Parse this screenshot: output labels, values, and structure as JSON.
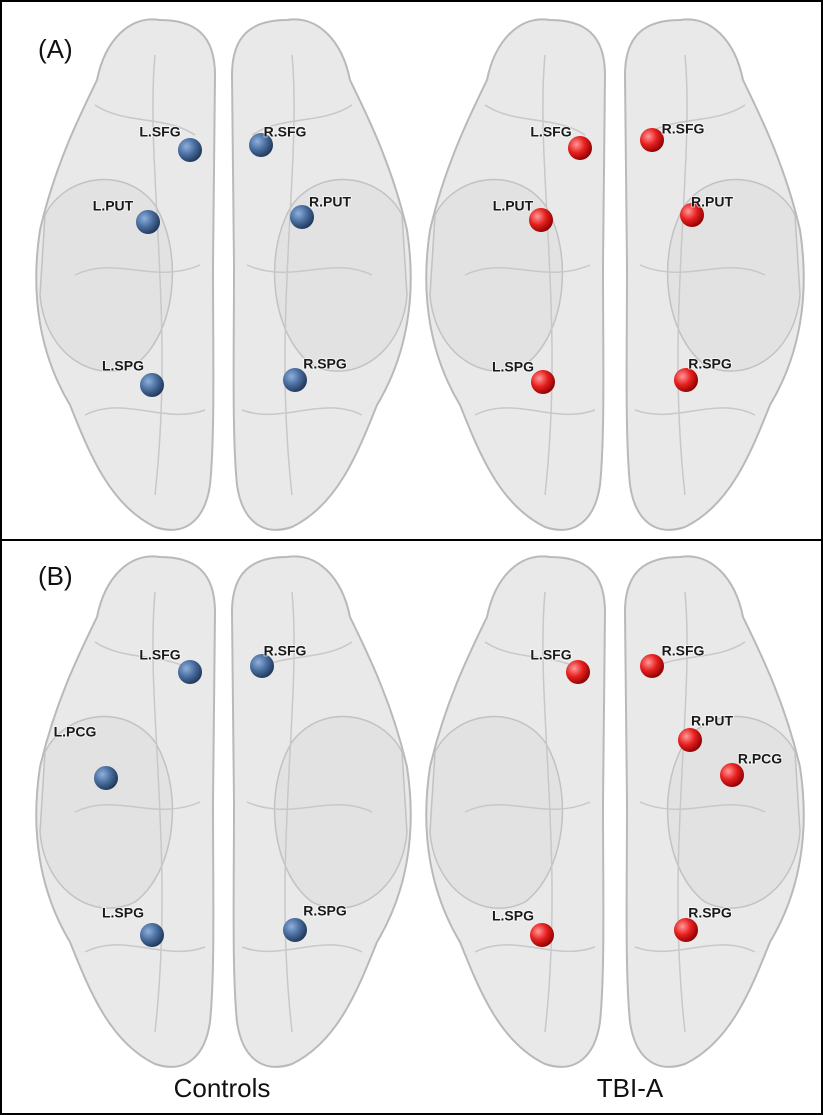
{
  "panels": [
    {
      "label": "(A)",
      "groups": [
        {
          "nodes": [
            "L.SFG",
            "R.SFG",
            "L.PUT",
            "R.PUT",
            "L.SPG",
            "R.SPG"
          ]
        },
        {
          "nodes": [
            "L.SFG",
            "R.SFG",
            "L.PUT",
            "R.PUT",
            "L.SPG",
            "R.SPG"
          ]
        }
      ]
    },
    {
      "label": "(B)",
      "groups": [
        {
          "nodes": [
            "L.SFG",
            "R.SFG",
            "L.PCG",
            "L.SPG",
            "R.SPG"
          ]
        },
        {
          "nodes": [
            "L.SFG",
            "R.SFG",
            "R.PUT",
            "R.PCG",
            "L.SPG",
            "R.SPG"
          ]
        }
      ]
    }
  ],
  "columns": [
    "Controls",
    "TBI-A"
  ]
}
